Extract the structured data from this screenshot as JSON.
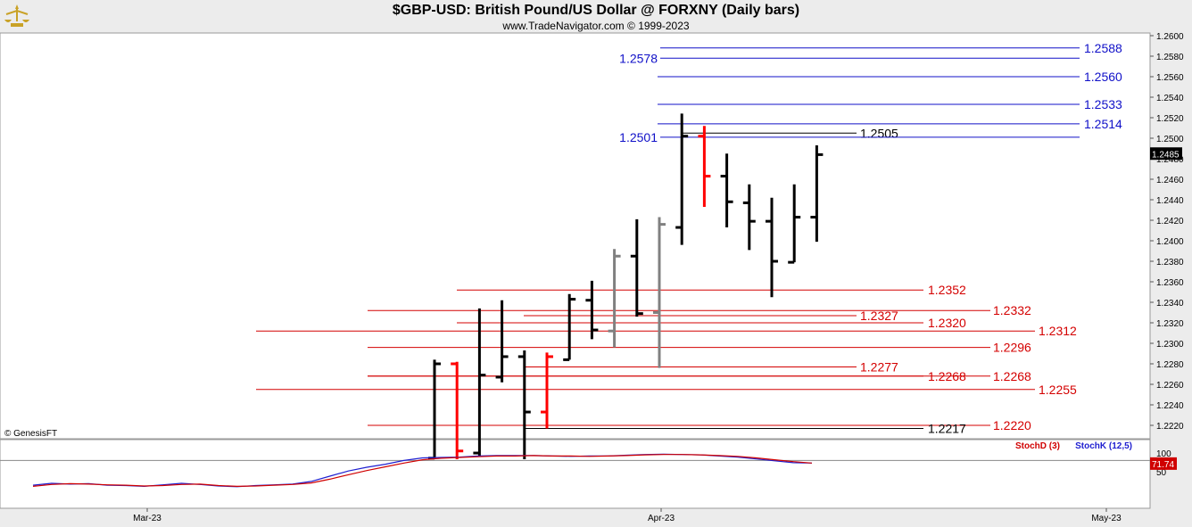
{
  "header": {
    "title": "$GBP-USD:  British Pound/US Dollar @ FORXNY  (Daily bars)",
    "subtitle": "www.TradeNavigator.com © 1999-2023",
    "copyright": "© GenesisFT"
  },
  "colors": {
    "up_bar": "#000000",
    "down_bar": "#ff0000",
    "inside_bar": "#808080",
    "resistance_line": "#1010c8",
    "support_line": "#d40000",
    "stoch_k": "#2020d0",
    "stoch_d": "#d00000"
  },
  "chart_data": [
    {
      "type": "ohlc",
      "title": "$GBP-USD:  British Pound/US Dollar @ FORXNY  (Daily bars)",
      "ylim": [
        1.2185,
        1.2605
      ],
      "y_ticks": [
        "1.2600",
        "1.2580",
        "1.2560",
        "1.2540",
        "1.2520",
        "1.2500",
        "1.2480",
        "1.2460",
        "1.2440",
        "1.2420",
        "1.2400",
        "1.2380",
        "1.2360",
        "1.2340",
        "1.2320",
        "1.2300",
        "1.2280",
        "1.2260",
        "1.2240",
        "1.2220"
      ],
      "last_value": "1.2485",
      "x_labels": [
        "Mar-23",
        "Apr-23",
        "May-23"
      ],
      "bars": [
        {
          "o": 1.2188,
          "h": 1.2284,
          "l": 1.2188,
          "c": 1.228,
          "color": "black"
        },
        {
          "o": 1.228,
          "h": 1.2282,
          "l": 1.2187,
          "c": 1.2195,
          "color": "red"
        },
        {
          "o": 1.2193,
          "h": 1.2334,
          "l": 1.219,
          "c": 1.2269,
          "color": "black"
        },
        {
          "o": 1.2267,
          "h": 1.2342,
          "l": 1.2262,
          "c": 1.2287,
          "color": "black"
        },
        {
          "o": 1.2287,
          "h": 1.2293,
          "l": 1.2187,
          "c": 1.2233,
          "color": "black"
        },
        {
          "o": 1.2233,
          "h": 1.2291,
          "l": 1.2217,
          "c": 1.2287,
          "color": "red"
        },
        {
          "o": 1.2284,
          "h": 1.2348,
          "l": 1.2284,
          "c": 1.2343,
          "color": "black"
        },
        {
          "o": 1.2342,
          "h": 1.2361,
          "l": 1.2304,
          "c": 1.2313,
          "color": "black"
        },
        {
          "o": 1.2312,
          "h": 1.2392,
          "l": 1.2296,
          "c": 1.2385,
          "color": "gray"
        },
        {
          "o": 1.2385,
          "h": 1.2421,
          "l": 1.2326,
          "c": 1.2329,
          "color": "black"
        },
        {
          "o": 1.233,
          "h": 1.2423,
          "l": 1.2276,
          "c": 1.2416,
          "color": "gray"
        },
        {
          "o": 1.2413,
          "h": 1.2524,
          "l": 1.2396,
          "c": 1.2502,
          "color": "black"
        },
        {
          "o": 1.2502,
          "h": 1.2512,
          "l": 1.2433,
          "c": 1.2463,
          "color": "red"
        },
        {
          "o": 1.2463,
          "h": 1.2485,
          "l": 1.2413,
          "c": 1.2438,
          "color": "black"
        },
        {
          "o": 1.2437,
          "h": 1.2455,
          "l": 1.2391,
          "c": 1.2419,
          "color": "black"
        },
        {
          "o": 1.2419,
          "h": 1.2442,
          "l": 1.2345,
          "c": 1.238,
          "color": "black"
        },
        {
          "o": 1.2379,
          "h": 1.2455,
          "l": 1.2379,
          "c": 1.2423,
          "color": "black"
        },
        {
          "o": 1.2423,
          "h": 1.2493,
          "l": 1.2399,
          "c": 1.2484,
          "color": "black"
        }
      ],
      "levels": [
        {
          "value": 1.2588,
          "label": "1.2588",
          "color": "blue",
          "label_side": "right-far"
        },
        {
          "value": 1.2578,
          "label": "1.2578",
          "color": "blue",
          "label_side": "left"
        },
        {
          "value": 1.256,
          "label": "1.2560",
          "color": "blue",
          "label_side": "right-far"
        },
        {
          "value": 1.2533,
          "label": "1.2533",
          "color": "blue",
          "label_side": "right-far"
        },
        {
          "value": 1.2514,
          "label": "1.2514",
          "color": "blue",
          "label_side": "right-far"
        },
        {
          "value": 1.2505,
          "label": "1.2505",
          "color": "black",
          "label_side": "right-near"
        },
        {
          "value": 1.2501,
          "label": "1.2501",
          "color": "blue",
          "label_side": "left"
        },
        {
          "value": 1.2352,
          "label": "1.2352",
          "color": "red",
          "label_side": "right-mid"
        },
        {
          "value": 1.2332,
          "label": "1.2332",
          "color": "red",
          "label_side": "right-far"
        },
        {
          "value": 1.2327,
          "label": "1.2327",
          "color": "red",
          "label_side": "right-near"
        },
        {
          "value": 1.232,
          "label": "1.2320",
          "color": "red",
          "label_side": "right-mid"
        },
        {
          "value": 1.2312,
          "label": "1.2312",
          "color": "red",
          "label_side": "right-outer"
        },
        {
          "value": 1.2296,
          "label": "1.2296",
          "color": "red",
          "label_side": "right-far"
        },
        {
          "value": 1.2277,
          "label": "1.2277",
          "color": "red",
          "label_side": "right-near"
        },
        {
          "value": 1.2268,
          "label": "1.2268",
          "color": "red",
          "label_side": "right-mid"
        },
        {
          "value": 1.2268,
          "label": "1.2268",
          "color": "red",
          "label_side": "right-far"
        },
        {
          "value": 1.2255,
          "label": "1.2255",
          "color": "red",
          "label_side": "right-outer"
        },
        {
          "value": 1.222,
          "label": "1.2220",
          "color": "red",
          "label_side": "right-far"
        },
        {
          "value": 1.2217,
          "label": "1.2217",
          "color": "black",
          "label_side": "right-mid"
        }
      ]
    },
    {
      "type": "line",
      "ylim": [
        0,
        100
      ],
      "y_ticks": [
        "100",
        "50"
      ],
      "legend": [
        "StochD (3)",
        "StochK (12,5)"
      ],
      "last_value": "71.74",
      "reference_line": 80,
      "series": [
        {
          "name": "StochK (12,5)",
          "values": [
            14,
            19,
            17,
            18,
            14,
            13,
            11,
            15,
            19,
            16,
            12,
            10,
            13,
            15,
            17,
            24,
            38,
            52,
            62,
            70,
            80,
            87,
            88,
            89,
            92,
            93,
            93,
            93,
            92,
            91,
            92,
            92,
            94,
            96,
            97,
            96,
            95,
            92,
            89,
            84,
            79,
            74,
            73
          ]
        },
        {
          "name": "StochD (3)",
          "values": [
            11,
            16,
            18,
            17,
            15,
            14,
            12,
            13,
            16,
            17,
            13,
            11,
            12,
            14,
            16,
            20,
            30,
            42,
            53,
            63,
            73,
            82,
            86,
            88,
            90,
            92,
            92,
            93,
            92,
            92,
            91,
            92,
            93,
            95,
            96,
            96,
            95,
            93,
            91,
            87,
            82,
            77,
            73
          ]
        }
      ]
    }
  ]
}
